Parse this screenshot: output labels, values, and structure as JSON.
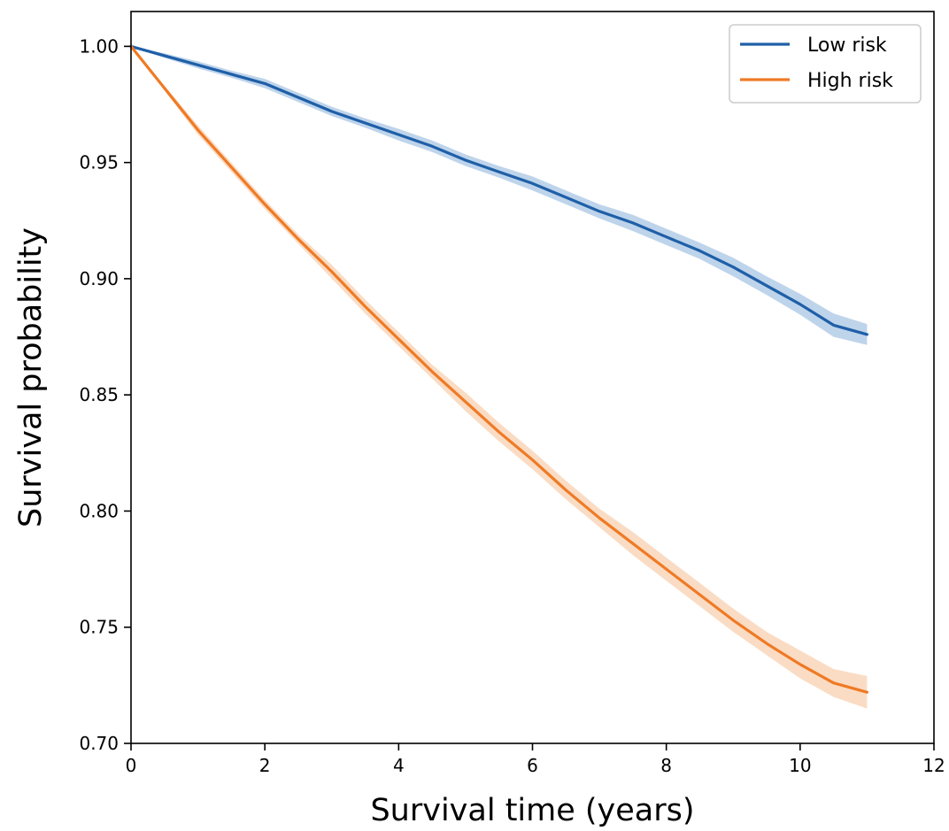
{
  "chart_data": {
    "type": "line",
    "title": "",
    "xlabel": "Survival time (years)",
    "ylabel": "Survival probability",
    "xlim": [
      0,
      12
    ],
    "ylim": [
      0.7,
      1.015
    ],
    "x_ticks": [
      0,
      2,
      4,
      6,
      8,
      10,
      12
    ],
    "x_tick_labels": [
      "0",
      "2",
      "4",
      "6",
      "8",
      "10",
      "12"
    ],
    "y_ticks": [
      0.7,
      0.75,
      0.8,
      0.85,
      0.9,
      0.95,
      1.0
    ],
    "y_tick_labels": [
      "0.70",
      "0.75",
      "0.80",
      "0.85",
      "0.90",
      "0.95",
      "1.00"
    ],
    "grid": false,
    "legend_position": "top-right",
    "series": [
      {
        "name": "Low risk",
        "color": "#1f5fa8",
        "band_color": "#6f9fd3",
        "x": [
          0,
          0.5,
          1,
          1.5,
          2,
          2.5,
          3,
          3.5,
          4,
          4.5,
          5,
          5.5,
          6,
          6.5,
          7,
          7.5,
          8,
          8.5,
          9,
          9.5,
          10,
          10.5,
          11
        ],
        "values": [
          1.0,
          0.996,
          0.992,
          0.988,
          0.984,
          0.978,
          0.972,
          0.967,
          0.962,
          0.957,
          0.951,
          0.946,
          0.941,
          0.935,
          0.929,
          0.924,
          0.918,
          0.912,
          0.905,
          0.897,
          0.889,
          0.88,
          0.876
        ],
        "lower": [
          1.0,
          0.995,
          0.9905,
          0.9865,
          0.982,
          0.976,
          0.97,
          0.965,
          0.9595,
          0.9545,
          0.9485,
          0.9435,
          0.938,
          0.932,
          0.926,
          0.9205,
          0.9145,
          0.9085,
          0.901,
          0.893,
          0.8845,
          0.875,
          0.8715
        ],
        "upper": [
          1.0,
          0.997,
          0.9935,
          0.9895,
          0.986,
          0.98,
          0.974,
          0.969,
          0.9645,
          0.9595,
          0.9535,
          0.9485,
          0.944,
          0.938,
          0.932,
          0.9275,
          0.9215,
          0.9155,
          0.909,
          0.901,
          0.8935,
          0.885,
          0.8805
        ]
      },
      {
        "name": "High risk",
        "color": "#ef7a25",
        "band_color": "#f4b27d",
        "x": [
          0,
          0.5,
          1,
          1.5,
          2,
          2.5,
          3,
          3.5,
          4,
          4.5,
          5,
          5.5,
          6,
          6.5,
          7,
          7.5,
          8,
          8.5,
          9,
          9.5,
          10,
          10.5,
          11
        ],
        "values": [
          1.0,
          0.982,
          0.964,
          0.948,
          0.932,
          0.917,
          0.903,
          0.888,
          0.874,
          0.86,
          0.847,
          0.834,
          0.822,
          0.809,
          0.797,
          0.786,
          0.775,
          0.764,
          0.753,
          0.743,
          0.734,
          0.726,
          0.722
        ],
        "lower": [
          1.0,
          0.981,
          0.962,
          0.946,
          0.93,
          0.915,
          0.9,
          0.885,
          0.871,
          0.857,
          0.843,
          0.83,
          0.818,
          0.805,
          0.793,
          0.781,
          0.77,
          0.759,
          0.748,
          0.738,
          0.728,
          0.72,
          0.715
        ],
        "upper": [
          1.0,
          0.983,
          0.966,
          0.95,
          0.934,
          0.919,
          0.906,
          0.891,
          0.877,
          0.863,
          0.851,
          0.838,
          0.826,
          0.813,
          0.801,
          0.791,
          0.78,
          0.769,
          0.758,
          0.748,
          0.74,
          0.732,
          0.729
        ]
      }
    ]
  }
}
